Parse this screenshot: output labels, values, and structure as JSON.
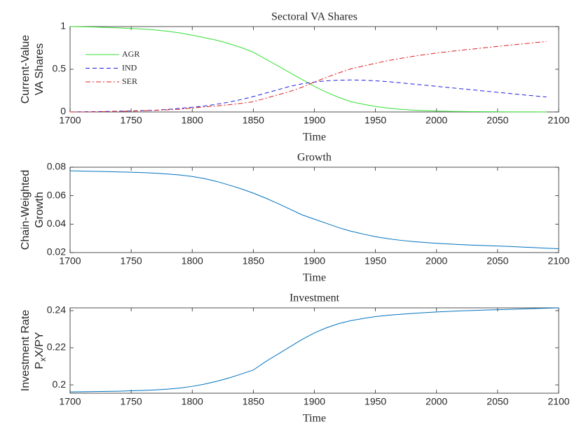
{
  "chart_data": [
    {
      "type": "line",
      "title": "Sectoral VA Shares",
      "xlabel": "Time",
      "ylabel": [
        "Current-Value",
        "VA Shares"
      ],
      "x": [
        1700,
        1710,
        1720,
        1730,
        1740,
        1750,
        1760,
        1770,
        1780,
        1790,
        1800,
        1810,
        1820,
        1830,
        1840,
        1850,
        1860,
        1870,
        1880,
        1890,
        1900,
        1910,
        1920,
        1930,
        1940,
        1950,
        1960,
        1970,
        1980,
        1990,
        2000,
        2010,
        2020,
        2030,
        2040,
        2050,
        2060,
        2070,
        2080,
        2090
      ],
      "series": [
        {
          "name": "AGR",
          "color": "#33e033",
          "linestyle": "solid",
          "values": [
            1.0,
            0.998,
            0.995,
            0.99,
            0.985,
            0.978,
            0.97,
            0.96,
            0.945,
            0.925,
            0.9,
            0.87,
            0.84,
            0.8,
            0.755,
            0.7,
            0.62,
            0.54,
            0.46,
            0.38,
            0.3,
            0.23,
            0.17,
            0.12,
            0.09,
            0.065,
            0.045,
            0.032,
            0.022,
            0.015,
            0.01,
            0.007,
            0.005,
            0.004,
            0.003,
            0.002,
            0.0015,
            0.001,
            0.001,
            0.0005
          ]
        },
        {
          "name": "IND",
          "color": "#1f1fe0",
          "linestyle": "dashed",
          "values": [
            0.0,
            0.002,
            0.004,
            0.006,
            0.009,
            0.012,
            0.016,
            0.021,
            0.03,
            0.042,
            0.055,
            0.07,
            0.09,
            0.115,
            0.145,
            0.18,
            0.22,
            0.26,
            0.3,
            0.33,
            0.35,
            0.365,
            0.372,
            0.375,
            0.372,
            0.365,
            0.355,
            0.342,
            0.328,
            0.314,
            0.3,
            0.286,
            0.272,
            0.258,
            0.244,
            0.23,
            0.216,
            0.202,
            0.188,
            0.175
          ]
        },
        {
          "name": "SER",
          "color": "#e02020",
          "linestyle": "dashdot",
          "values": [
            0.0,
            0.0,
            0.001,
            0.004,
            0.006,
            0.01,
            0.014,
            0.019,
            0.025,
            0.033,
            0.045,
            0.06,
            0.07,
            0.085,
            0.1,
            0.12,
            0.16,
            0.2,
            0.24,
            0.29,
            0.35,
            0.405,
            0.458,
            0.505,
            0.538,
            0.57,
            0.6,
            0.626,
            0.65,
            0.671,
            0.69,
            0.707,
            0.723,
            0.738,
            0.753,
            0.768,
            0.782,
            0.797,
            0.811,
            0.825
          ]
        }
      ],
      "xlim": [
        1700,
        2100
      ],
      "xticks": [
        1700,
        1750,
        1800,
        1850,
        1900,
        1950,
        2000,
        2050,
        2100
      ],
      "ylim": [
        0,
        1
      ],
      "yticks": [
        0,
        0.5,
        1
      ],
      "legend": "northwest"
    },
    {
      "type": "line",
      "title": "Growth",
      "xlabel": "Time",
      "ylabel": [
        "Chain-Weighted",
        "Growth"
      ],
      "x": [
        1700,
        1710,
        1720,
        1730,
        1740,
        1750,
        1760,
        1770,
        1780,
        1790,
        1800,
        1810,
        1820,
        1830,
        1840,
        1850,
        1860,
        1870,
        1880,
        1890,
        1900,
        1910,
        1920,
        1930,
        1940,
        1950,
        1960,
        1970,
        1980,
        1990,
        2000,
        2010,
        2020,
        2030,
        2040,
        2050,
        2060,
        2070,
        2080,
        2090,
        2100
      ],
      "series": [
        {
          "color": "#0072bd",
          "linestyle": "solid",
          "values": [
            0.0775,
            0.0773,
            0.0771,
            0.0769,
            0.0767,
            0.0765,
            0.0762,
            0.0758,
            0.0752,
            0.0745,
            0.0735,
            0.072,
            0.07,
            0.0675,
            0.0648,
            0.0618,
            0.0583,
            0.0545,
            0.0505,
            0.0465,
            0.0435,
            0.0405,
            0.0375,
            0.035,
            0.033,
            0.0312,
            0.0298,
            0.0287,
            0.0278,
            0.0271,
            0.0265,
            0.026,
            0.0256,
            0.0252,
            0.0249,
            0.0246,
            0.0243,
            0.0239,
            0.0235,
            0.0231,
            0.0227
          ]
        }
      ],
      "xlim": [
        1700,
        2100
      ],
      "xticks": [
        1700,
        1750,
        1800,
        1850,
        1900,
        1950,
        2000,
        2050,
        2100
      ],
      "ylim": [
        0.02,
        0.08
      ],
      "yticks": [
        0.02,
        0.04,
        0.06,
        0.08
      ]
    },
    {
      "type": "line",
      "title": "Investment",
      "xlabel": "Time",
      "ylabel": [
        "Investment Rate",
        [
          "P",
          "x",
          "X/PY"
        ]
      ],
      "x": [
        1700,
        1710,
        1720,
        1730,
        1740,
        1750,
        1760,
        1770,
        1780,
        1790,
        1800,
        1810,
        1820,
        1830,
        1840,
        1850,
        1860,
        1870,
        1880,
        1890,
        1900,
        1910,
        1920,
        1930,
        1940,
        1950,
        1960,
        1970,
        1980,
        1990,
        2000,
        2010,
        2020,
        2030,
        2040,
        2050,
        2060,
        2070,
        2080,
        2090,
        2100
      ],
      "series": [
        {
          "color": "#0072bd",
          "linestyle": "solid",
          "values": [
            0.1962,
            0.1963,
            0.1964,
            0.1965,
            0.1966,
            0.1968,
            0.197,
            0.1973,
            0.1977,
            0.1983,
            0.1992,
            0.2004,
            0.2019,
            0.2037,
            0.2058,
            0.208,
            0.2125,
            0.2165,
            0.2205,
            0.2245,
            0.228,
            0.2308,
            0.233,
            0.2346,
            0.2358,
            0.2368,
            0.2375,
            0.238,
            0.2385,
            0.2389,
            0.2393,
            0.2396,
            0.2399,
            0.2401,
            0.2403,
            0.2405,
            0.2407,
            0.2409,
            0.2411,
            0.2413,
            0.2415
          ]
        }
      ],
      "xlim": [
        1700,
        2100
      ],
      "xticks": [
        1700,
        1750,
        1800,
        1850,
        1900,
        1950,
        2000,
        2050,
        2100
      ],
      "ylim": [
        0.1955,
        0.2415
      ],
      "yticks": [
        0.2,
        0.22,
        0.24
      ]
    }
  ]
}
